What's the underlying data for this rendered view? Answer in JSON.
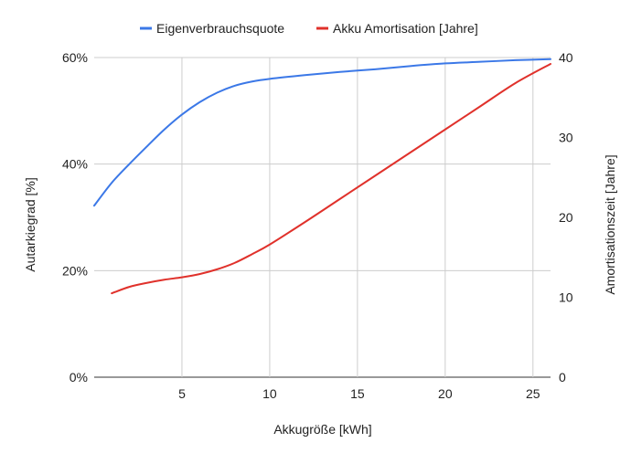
{
  "chart_data": {
    "type": "line",
    "xlabel": "Akkugröße [kWh]",
    "ylabel_left": "Autarkiegrad [%]",
    "ylabel_right": "Amortisationszeit [Jahre]",
    "xlim": [
      0,
      26
    ],
    "x_ticks": [
      "5",
      "10",
      "15",
      "20",
      "25"
    ],
    "y_left_lim": [
      0,
      60
    ],
    "y_left_ticks": [
      "0%",
      "20%",
      "40%",
      "60%"
    ],
    "y_right_lim": [
      0,
      40
    ],
    "y_right_ticks": [
      "0",
      "10",
      "20",
      "30",
      "40"
    ],
    "grid": true,
    "legend_position": "top",
    "series": [
      {
        "name": "Eigenverbrauchsquote",
        "axis": "left",
        "color": "#3b78e7",
        "x": [
          0,
          1,
          2,
          3,
          4,
          5,
          6,
          7,
          8,
          9,
          10,
          12,
          14,
          16,
          18,
          20,
          22,
          24,
          26
        ],
        "y": [
          32.2,
          36.5,
          40.0,
          43.3,
          46.5,
          49.3,
          51.6,
          53.4,
          54.7,
          55.5,
          56.0,
          56.7,
          57.3,
          57.8,
          58.4,
          58.9,
          59.2,
          59.5,
          59.7
        ]
      },
      {
        "name": "Akku Amortisation [Jahre]",
        "axis": "right",
        "color": "#e0312b",
        "x": [
          1,
          2,
          3,
          4,
          5,
          6,
          7,
          8,
          9,
          10,
          12,
          14,
          16,
          18,
          20,
          22,
          24,
          26
        ],
        "y": [
          10.5,
          11.3,
          11.8,
          12.2,
          12.5,
          12.9,
          13.5,
          14.3,
          15.4,
          16.6,
          19.4,
          22.3,
          25.2,
          28.1,
          31.0,
          33.9,
          36.8,
          39.2
        ]
      }
    ]
  }
}
